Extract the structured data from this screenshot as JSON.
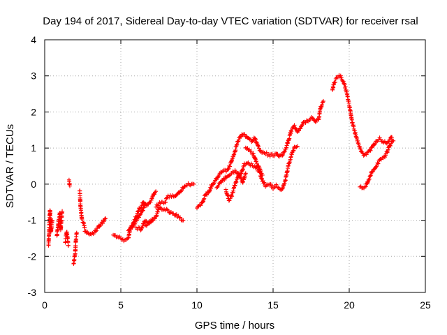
{
  "chart_data": {
    "type": "scatter",
    "title": "Day 194 of 2017, Sidereal Day-to-day VTEC variation (SDTVAR) for receiver rsal",
    "xlabel": "GPS time / hours",
    "ylabel": "SDTVAR / TECUs",
    "xlim": [
      0,
      25
    ],
    "ylim": [
      -3,
      4
    ],
    "xticks": [
      "0",
      "5",
      "10",
      "15",
      "20",
      "25"
    ],
    "yticks": [
      "-3",
      "-2",
      "-1",
      "0",
      "1",
      "2",
      "3",
      "4"
    ],
    "grid": true,
    "marker": "+",
    "color": "#ff0000",
    "series": [
      {
        "name": "rsal",
        "segments": [
          [
            [
              0.25,
              -1.7
            ],
            [
              0.3,
              -1.2
            ],
            [
              0.35,
              -0.7
            ],
            [
              0.4,
              -1.35
            ],
            [
              0.5,
              -1.0
            ]
          ],
          [
            [
              0.8,
              -1.45
            ],
            [
              0.9,
              -1.1
            ],
            [
              1.0,
              -0.8
            ],
            [
              1.05,
              -1.25
            ],
            [
              1.15,
              -0.75
            ]
          ],
          [
            [
              1.35,
              -1.6
            ],
            [
              1.45,
              -1.3
            ],
            [
              1.55,
              -1.7
            ]
          ],
          [
            [
              1.6,
              0.1
            ],
            [
              1.65,
              -0.05
            ]
          ],
          [
            [
              1.9,
              -2.2
            ],
            [
              2.0,
              -1.9
            ],
            [
              2.05,
              -1.55
            ],
            [
              2.1,
              -1.35
            ]
          ],
          [
            [
              2.3,
              -0.15
            ],
            [
              2.35,
              -0.6
            ],
            [
              2.45,
              -1.0
            ],
            [
              2.55,
              -1.05
            ],
            [
              2.65,
              -1.3
            ],
            [
              2.8,
              -1.35
            ],
            [
              3.0,
              -1.4
            ],
            [
              3.2,
              -1.35
            ],
            [
              3.5,
              -1.2
            ],
            [
              3.8,
              -1.05
            ],
            [
              4.0,
              -0.95
            ]
          ],
          [
            [
              4.5,
              -1.4
            ],
            [
              4.7,
              -1.45
            ],
            [
              5.0,
              -1.5
            ],
            [
              5.2,
              -1.55
            ],
            [
              5.5,
              -1.5
            ],
            [
              5.6,
              -1.25
            ],
            [
              5.9,
              -1.0
            ],
            [
              6.2,
              -0.7
            ],
            [
              6.5,
              -0.5
            ],
            [
              6.7,
              -0.6
            ],
            [
              7.0,
              -0.45
            ],
            [
              7.2,
              -0.25
            ],
            [
              7.3,
              -0.2
            ]
          ],
          [
            [
              5.5,
              -1.3
            ],
            [
              5.8,
              -1.15
            ],
            [
              6.1,
              -0.95
            ],
            [
              6.4,
              -0.75
            ],
            [
              6.6,
              -0.55
            ]
          ],
          [
            [
              6.0,
              -1.2
            ],
            [
              6.3,
              -1.25
            ],
            [
              6.6,
              -1.0
            ],
            [
              6.8,
              -1.05
            ],
            [
              7.0,
              -1.0
            ],
            [
              7.3,
              -0.9
            ],
            [
              7.5,
              -0.65
            ],
            [
              7.7,
              -0.7
            ],
            [
              8.0,
              -0.7
            ],
            [
              8.3,
              -0.8
            ],
            [
              8.6,
              -0.85
            ],
            [
              8.9,
              -0.95
            ],
            [
              9.1,
              -1.0
            ]
          ],
          [
            [
              7.3,
              -0.6
            ],
            [
              7.6,
              -0.5
            ],
            [
              7.9,
              -0.5
            ],
            [
              8.1,
              -0.35
            ],
            [
              8.4,
              -0.3
            ],
            [
              8.6,
              -0.35
            ],
            [
              8.9,
              -0.2
            ],
            [
              9.2,
              -0.05
            ],
            [
              9.5,
              0.0
            ],
            [
              9.8,
              0.0
            ]
          ],
          [
            [
              6.6,
              -1.15
            ],
            [
              6.9,
              -1.05
            ],
            [
              7.1,
              -1.0
            ]
          ],
          [
            [
              10.0,
              -0.65
            ],
            [
              10.3,
              -0.55
            ],
            [
              10.5,
              -0.35
            ],
            [
              10.8,
              -0.2
            ],
            [
              11.0,
              0.0
            ],
            [
              11.3,
              0.15
            ],
            [
              11.5,
              0.3
            ],
            [
              11.7,
              0.35
            ],
            [
              12.0,
              0.4
            ],
            [
              12.2,
              0.55
            ],
            [
              12.3,
              0.7
            ],
            [
              12.5,
              0.9
            ],
            [
              12.6,
              1.1
            ],
            [
              12.8,
              1.3
            ],
            [
              13.0,
              1.4
            ],
            [
              13.2,
              1.35
            ],
            [
              13.4,
              1.25
            ],
            [
              13.6,
              1.2
            ],
            [
              13.8,
              1.3
            ],
            [
              14.0,
              1.05
            ],
            [
              14.2,
              0.9
            ],
            [
              14.5,
              0.85
            ],
            [
              14.8,
              0.8
            ],
            [
              15.0,
              0.8
            ],
            [
              15.2,
              0.85
            ],
            [
              15.4,
              0.75
            ],
            [
              15.6,
              0.8
            ],
            [
              15.8,
              0.95
            ],
            [
              16.0,
              1.2
            ],
            [
              16.2,
              1.5
            ],
            [
              16.4,
              1.6
            ],
            [
              16.6,
              1.45
            ],
            [
              16.8,
              1.55
            ],
            [
              17.0,
              1.7
            ],
            [
              17.2,
              1.75
            ],
            [
              17.4,
              1.8
            ],
            [
              17.6,
              1.85
            ],
            [
              17.8,
              1.75
            ],
            [
              18.0,
              1.8
            ],
            [
              18.1,
              2.1
            ],
            [
              18.3,
              2.3
            ]
          ],
          [
            [
              11.3,
              -0.1
            ],
            [
              11.6,
              0.05
            ],
            [
              11.9,
              0.2
            ],
            [
              12.2,
              0.3
            ],
            [
              12.5,
              0.35
            ],
            [
              12.8,
              0.25
            ],
            [
              13.0,
              0.05
            ],
            [
              13.2,
              0.3
            ]
          ],
          [
            [
              11.9,
              -0.15
            ],
            [
              12.1,
              -0.45
            ],
            [
              12.3,
              -0.3
            ],
            [
              12.5,
              0.0
            ],
            [
              12.7,
              0.2
            ],
            [
              12.9,
              0.3
            ],
            [
              13.1,
              0.55
            ],
            [
              13.3,
              0.6
            ],
            [
              13.5,
              0.55
            ],
            [
              13.8,
              0.5
            ],
            [
              14.1,
              0.35
            ],
            [
              14.3,
              0.1
            ],
            [
              14.5,
              -0.05
            ],
            [
              14.8,
              0.0
            ],
            [
              15.0,
              -0.1
            ],
            [
              15.2,
              -0.05
            ],
            [
              15.4,
              -0.1
            ],
            [
              15.6,
              -0.15
            ],
            [
              15.8,
              0.1
            ],
            [
              16.0,
              0.5
            ],
            [
              16.2,
              0.8
            ],
            [
              16.4,
              1.0
            ],
            [
              16.6,
              1.05
            ]
          ],
          [
            [
              13.2,
              1.0
            ],
            [
              13.5,
              0.9
            ],
            [
              13.7,
              0.85
            ],
            [
              13.9,
              0.6
            ],
            [
              14.1,
              0.45
            ],
            [
              14.3,
              0.25
            ]
          ],
          [
            [
              18.9,
              2.6
            ],
            [
              19.0,
              2.8
            ],
            [
              19.2,
              2.95
            ],
            [
              19.4,
              3.0
            ],
            [
              19.6,
              2.85
            ],
            [
              19.8,
              2.6
            ],
            [
              20.0,
              2.2
            ],
            [
              20.2,
              1.7
            ],
            [
              20.4,
              1.4
            ],
            [
              20.6,
              1.1
            ],
            [
              20.8,
              0.9
            ],
            [
              21.0,
              0.8
            ],
            [
              21.2,
              0.85
            ],
            [
              21.4,
              0.95
            ],
            [
              21.6,
              1.1
            ],
            [
              21.8,
              1.2
            ],
            [
              22.0,
              1.25
            ],
            [
              22.2,
              1.2
            ],
            [
              22.4,
              1.15
            ],
            [
              22.6,
              1.2
            ],
            [
              22.8,
              1.3
            ]
          ],
          [
            [
              20.7,
              -0.05
            ],
            [
              20.9,
              -0.1
            ],
            [
              21.1,
              -0.05
            ],
            [
              21.3,
              0.15
            ],
            [
              21.5,
              0.35
            ],
            [
              21.7,
              0.45
            ],
            [
              21.9,
              0.6
            ],
            [
              22.1,
              0.7
            ],
            [
              22.3,
              0.75
            ],
            [
              22.5,
              0.9
            ],
            [
              22.7,
              1.1
            ],
            [
              22.9,
              1.2
            ]
          ]
        ]
      }
    ]
  }
}
